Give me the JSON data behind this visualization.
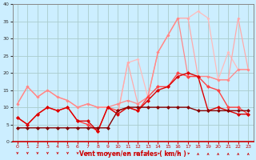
{
  "xlabel": "Vent moyen/en rafales ( km/h )",
  "background_color": "#cceeff",
  "grid_color": "#aacccc",
  "x_range": [
    -0.5,
    23.5
  ],
  "y_range": [
    0,
    40
  ],
  "yticks": [
    0,
    5,
    10,
    15,
    20,
    25,
    30,
    35,
    40
  ],
  "xticks": [
    0,
    1,
    2,
    3,
    4,
    5,
    6,
    7,
    8,
    9,
    10,
    11,
    12,
    13,
    14,
    15,
    16,
    17,
    18,
    19,
    20,
    21,
    22,
    23
  ],
  "series": [
    {
      "x": [
        0,
        1,
        2,
        3,
        4,
        5,
        6,
        7,
        8,
        9,
        10,
        11,
        12,
        13,
        14,
        15,
        16,
        17,
        18,
        19,
        20,
        21,
        22,
        23
      ],
      "y": [
        11,
        16,
        13,
        15,
        13,
        12,
        10,
        11,
        10,
        10,
        8,
        23,
        24,
        13,
        26,
        31,
        36,
        36,
        38,
        36,
        18,
        26,
        21,
        21
      ],
      "color": "#ffbbbb",
      "lw": 0.9,
      "ms": 2.0,
      "zorder": 1
    },
    {
      "x": [
        0,
        1,
        2,
        3,
        4,
        5,
        6,
        7,
        8,
        9,
        10,
        11,
        12,
        13,
        14,
        15,
        16,
        17,
        18,
        19,
        20,
        21,
        22,
        23
      ],
      "y": [
        11,
        16,
        13,
        15,
        13,
        12,
        10,
        11,
        10,
        10,
        8,
        23,
        11,
        13,
        26,
        31,
        36,
        36,
        19,
        19,
        18,
        18,
        36,
        21
      ],
      "color": "#ffaaaa",
      "lw": 0.9,
      "ms": 2.0,
      "zorder": 2
    },
    {
      "x": [
        0,
        1,
        2,
        3,
        4,
        5,
        6,
        7,
        8,
        9,
        10,
        11,
        12,
        13,
        14,
        15,
        16,
        17,
        18,
        19,
        20,
        21,
        22,
        23
      ],
      "y": [
        11,
        16,
        13,
        15,
        13,
        12,
        10,
        11,
        10,
        10,
        11,
        12,
        11,
        13,
        26,
        31,
        36,
        19,
        19,
        19,
        18,
        18,
        21,
        21
      ],
      "color": "#ff8888",
      "lw": 0.9,
      "ms": 2.0,
      "zorder": 3
    },
    {
      "x": [
        0,
        1,
        2,
        3,
        4,
        5,
        6,
        7,
        8,
        9,
        10,
        11,
        12,
        13,
        14,
        15,
        16,
        17,
        18,
        19,
        20,
        21,
        22,
        23
      ],
      "y": [
        7,
        5,
        8,
        10,
        9,
        10,
        6,
        5,
        3,
        10,
        9,
        10,
        9,
        13,
        16,
        16,
        20,
        19,
        19,
        16,
        15,
        10,
        10,
        8
      ],
      "color": "#ff4444",
      "lw": 1.0,
      "ms": 2.5,
      "zorder": 4
    },
    {
      "x": [
        0,
        1,
        2,
        3,
        4,
        5,
        6,
        7,
        8,
        9,
        10,
        11,
        12,
        13,
        14,
        15,
        16,
        17,
        18,
        19,
        20,
        21,
        22,
        23
      ],
      "y": [
        7,
        5,
        8,
        10,
        9,
        10,
        6,
        6,
        3,
        10,
        8,
        10,
        9,
        12,
        15,
        16,
        19,
        20,
        19,
        9,
        10,
        9,
        8,
        8
      ],
      "color": "#dd0000",
      "lw": 1.0,
      "ms": 2.5,
      "zorder": 5
    },
    {
      "x": [
        0,
        1,
        2,
        3,
        4,
        5,
        6,
        7,
        8,
        9,
        10,
        11,
        12,
        13,
        14,
        15,
        16,
        17,
        18,
        19,
        20,
        21,
        22,
        23
      ],
      "y": [
        4,
        4,
        4,
        4,
        4,
        4,
        4,
        4,
        4,
        4,
        9,
        10,
        10,
        10,
        10,
        10,
        10,
        10,
        9,
        9,
        9,
        9,
        9,
        9
      ],
      "color": "#880000",
      "lw": 1.0,
      "ms": 2.5,
      "zorder": 6
    }
  ],
  "arrow_dirs": [
    180,
    180,
    180,
    180,
    180,
    180,
    180,
    180,
    180,
    180,
    90,
    45,
    90,
    180,
    45,
    45,
    45,
    45,
    0,
    0,
    0,
    0,
    0,
    0
  ]
}
